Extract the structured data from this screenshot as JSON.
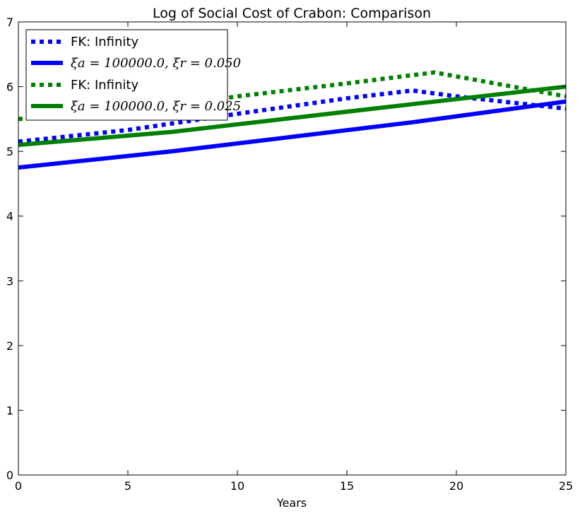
{
  "chart_data": {
    "type": "line",
    "title": "Log of Social Cost of Crabon: Comparison",
    "xlabel": "Years",
    "ylabel": "",
    "xlim": [
      0,
      25
    ],
    "ylim": [
      0,
      7
    ],
    "xticks": [
      0,
      5,
      10,
      15,
      20,
      25
    ],
    "yticks": [
      0,
      1,
      2,
      3,
      4,
      5,
      6,
      7
    ],
    "grid": false,
    "legend_position": "top-left",
    "series": [
      {
        "name": "FK: Infinity",
        "color": "#0000ff",
        "style": "dotted",
        "x": [
          0,
          5,
          10,
          15,
          18,
          20,
          25
        ],
        "y": [
          5.15,
          5.33,
          5.58,
          5.82,
          5.94,
          5.85,
          5.66
        ]
      },
      {
        "name": "ξa = 100000.0, ξr = 0.050",
        "color": "#0000ff",
        "style": "solid",
        "x": [
          0,
          7,
          18,
          25
        ],
        "y": [
          4.75,
          5.0,
          5.45,
          5.77
        ]
      },
      {
        "name": "FK: Infinity",
        "color": "#008000",
        "style": "dotted",
        "x": [
          0,
          5,
          10,
          15,
          19,
          25
        ],
        "y": [
          5.5,
          5.6,
          5.85,
          6.05,
          6.22,
          5.85
        ]
      },
      {
        "name": "ξa = 100000.0, ξr = 0.025",
        "color": "#008000",
        "style": "solid",
        "x": [
          0,
          7,
          18,
          25
        ],
        "y": [
          5.1,
          5.3,
          5.73,
          6.0
        ]
      }
    ]
  }
}
